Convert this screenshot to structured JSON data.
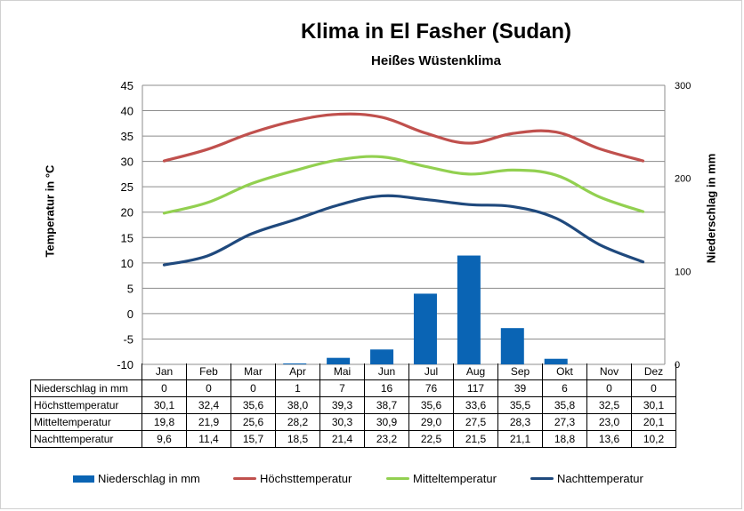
{
  "chart_data": {
    "type": "bar+line",
    "title": "Klima in El Fasher (Sudan)",
    "subtitle": "Heißes Wüstenklima",
    "ylabel_left": "Temperatur in °C",
    "ylabel_right": "Niederschlag in mm",
    "ylim_left": [
      -10,
      45
    ],
    "yticks_left": [
      "45",
      "40",
      "35",
      "30",
      "25",
      "20",
      "15",
      "10",
      "5",
      "0",
      "-5",
      "-10"
    ],
    "ylim_right": [
      0,
      300
    ],
    "yticks_right": [
      "300",
      "200",
      "100",
      "0"
    ],
    "grid": true,
    "legend_position": "bottom",
    "categories": [
      "Jan",
      "Feb",
      "Mar",
      "Apr",
      "Mai",
      "Jun",
      "Jul",
      "Aug",
      "Sep",
      "Okt",
      "Nov",
      "Dez"
    ],
    "series": [
      {
        "name": "Niederschlag in mm",
        "type": "bar",
        "axis": "right",
        "color": "#0a64b4",
        "values": [
          0,
          0,
          0,
          1,
          7,
          16,
          76,
          117,
          39,
          6,
          0,
          0
        ],
        "labels": [
          "0",
          "0",
          "0",
          "1",
          "7",
          "16",
          "76",
          "117",
          "39",
          "6",
          "0",
          "0"
        ]
      },
      {
        "name": "Höchsttemperatur",
        "type": "line",
        "axis": "left",
        "color": "#c0504d",
        "values": [
          30.1,
          32.4,
          35.6,
          38.0,
          39.3,
          38.7,
          35.6,
          33.6,
          35.5,
          35.8,
          32.5,
          30.1
        ],
        "labels": [
          "30,1",
          "32,4",
          "35,6",
          "38,0",
          "39,3",
          "38,7",
          "35,6",
          "33,6",
          "35,5",
          "35,8",
          "32,5",
          "30,1"
        ]
      },
      {
        "name": "Mitteltemperatur",
        "type": "line",
        "axis": "left",
        "color": "#92d050",
        "values": [
          19.8,
          21.9,
          25.6,
          28.2,
          30.3,
          30.9,
          29.0,
          27.5,
          28.3,
          27.3,
          23.0,
          20.1
        ],
        "labels": [
          "19,8",
          "21,9",
          "25,6",
          "28,2",
          "30,3",
          "30,9",
          "29,0",
          "27,5",
          "28,3",
          "27,3",
          "23,0",
          "20,1"
        ]
      },
      {
        "name": "Nachttemperatur",
        "type": "line",
        "axis": "left",
        "color": "#1f497d",
        "values": [
          9.6,
          11.4,
          15.7,
          18.5,
          21.4,
          23.2,
          22.5,
          21.5,
          21.1,
          18.8,
          13.6,
          10.2
        ],
        "labels": [
          "9,6",
          "11,4",
          "15,7",
          "18,5",
          "21,4",
          "23,2",
          "22,5",
          "21,5",
          "21,1",
          "18,8",
          "13,6",
          "10,2"
        ]
      }
    ]
  }
}
